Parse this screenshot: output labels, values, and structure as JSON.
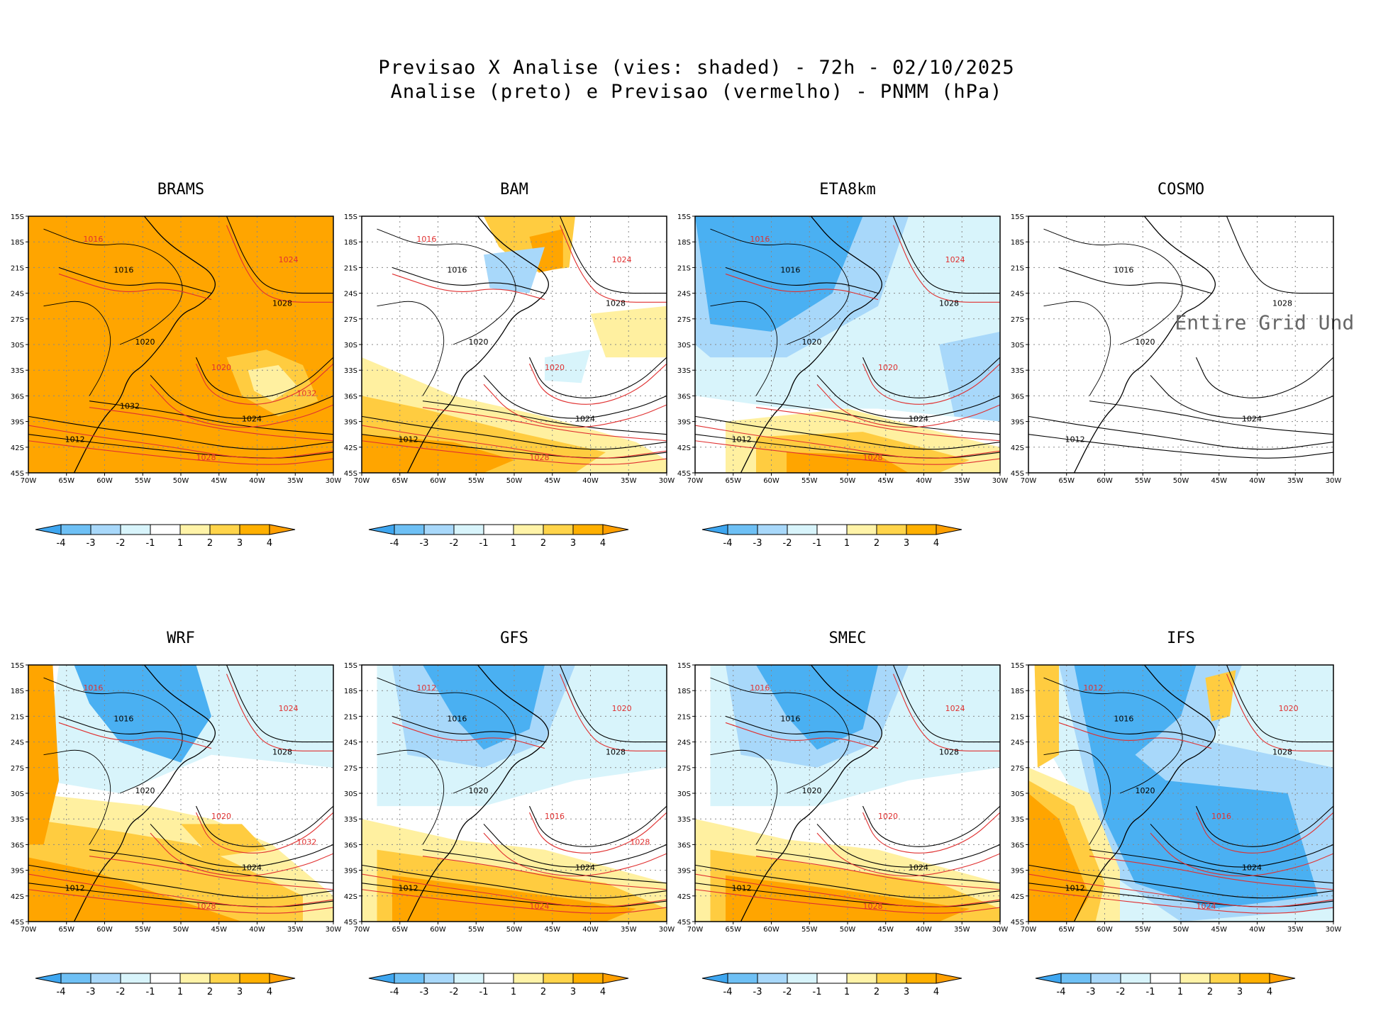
{
  "header": {
    "line1": "Previsao X Analise (vies: shaded) - 72h - 02/10/2025",
    "line2": "Analise (preto) e Previsao (vermelho) - PNMM (hPa)"
  },
  "lat_ticks": [
    "15S",
    "18S",
    "21S",
    "24S",
    "27S",
    "30S",
    "33S",
    "36S",
    "39S",
    "42S",
    "45S"
  ],
  "lon_ticks": [
    "70W",
    "65W",
    "60W",
    "55W",
    "50W",
    "45W",
    "40W",
    "35W",
    "30W"
  ],
  "colorbar": {
    "labels": [
      "-4",
      "-3",
      "-2",
      "-1",
      "1",
      "2",
      "3",
      "4"
    ],
    "colors": [
      "#3ea6f0",
      "#6ec0f5",
      "#a8d8fa",
      "#d8f4fb",
      "#ffffff",
      "#fff3a8",
      "#ffd44a",
      "#ffb000",
      "#ff9f00"
    ]
  },
  "colors": {
    "analysis": "#000000",
    "forecast": "#e03030",
    "warm3": "#ffa500",
    "warm2": "#ffcc40",
    "warm1": "#fff0a0",
    "cold1": "#d8f4fb",
    "cold2": "#a8d8fa",
    "cold3": "#4ab0f2"
  },
  "panels": [
    {
      "id": "brams",
      "name": "BRAMS",
      "bias": "warm-strong",
      "contour_labels_analysis": [
        "1012",
        "1016",
        "1020",
        "1024",
        "1028",
        "1032"
      ],
      "contour_labels_forecast": [
        "1016",
        "1020",
        "1024",
        "1028",
        "1032"
      ]
    },
    {
      "id": "bam",
      "name": "BAM",
      "bias": "warm-south",
      "contour_labels_analysis": [
        "1012",
        "1016",
        "1020",
        "1024",
        "1028"
      ],
      "contour_labels_forecast": [
        "1016",
        "1020",
        "1024",
        "1028"
      ]
    },
    {
      "id": "eta8km",
      "name": "ETA8km",
      "bias": "cold-north",
      "contour_labels_analysis": [
        "1012",
        "1016",
        "1020",
        "1024",
        "1028"
      ],
      "contour_labels_forecast": [
        "1016",
        "1020",
        "1024",
        "1028"
      ]
    },
    {
      "id": "cosmo",
      "name": "COSMO",
      "bias": "none",
      "note": "Entire Grid Und",
      "contour_labels_analysis": [
        "1012",
        "1016",
        "1020",
        "1024",
        "1028"
      ],
      "contour_labels_forecast": []
    },
    {
      "id": "wrf",
      "name": "WRF",
      "bias": "mixed",
      "contour_labels_analysis": [
        "1012",
        "1016",
        "1020",
        "1024",
        "1028"
      ],
      "contour_labels_forecast": [
        "1016",
        "1020",
        "1024",
        "1028",
        "1032"
      ]
    },
    {
      "id": "gfs",
      "name": "GFS",
      "bias": "cold-north-warm-south",
      "contour_labels_analysis": [
        "1012",
        "1016",
        "1020",
        "1024",
        "1028"
      ],
      "contour_labels_forecast": [
        "1012",
        "1016",
        "1020",
        "1024",
        "1028"
      ]
    },
    {
      "id": "smec",
      "name": "SMEC",
      "bias": "cold-north-warm-south",
      "contour_labels_analysis": [
        "1012",
        "1016",
        "1020",
        "1024",
        "1028"
      ],
      "contour_labels_forecast": [
        "1016",
        "1020",
        "1024",
        "1028"
      ]
    },
    {
      "id": "ifs",
      "name": "IFS",
      "bias": "cold-south",
      "contour_labels_analysis": [
        "1012",
        "1016",
        "1020",
        "1024",
        "1028"
      ],
      "contour_labels_forecast": [
        "1012",
        "1016",
        "1020",
        "1024"
      ]
    }
  ]
}
